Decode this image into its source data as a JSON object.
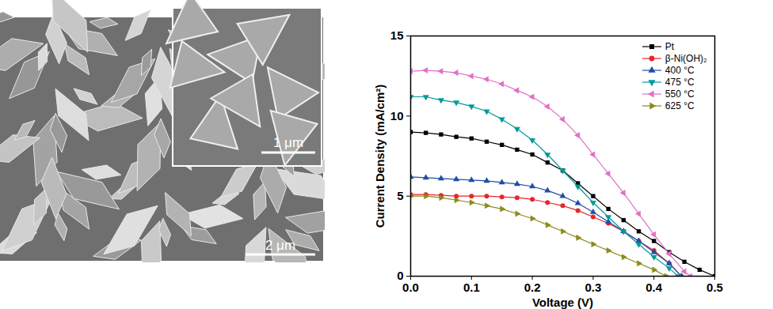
{
  "image": {
    "inset_scale_bar": "1 μm",
    "scale_bar": "2 μm"
  },
  "chart_data": {
    "type": "line",
    "x_label": "Voltage (V)",
    "y_label": "Current Density (mA/cm²)",
    "xlim": [
      0,
      0.5
    ],
    "ylim": [
      0,
      15
    ],
    "xticks": [
      {
        "value": 0,
        "label": "0.0"
      },
      {
        "value": 0.1,
        "label": "0.1"
      },
      {
        "value": 0.2,
        "label": "0.2"
      },
      {
        "value": 0.3,
        "label": "0.3"
      },
      {
        "value": 0.4,
        "label": "0.4"
      },
      {
        "value": 0.5,
        "label": "0.5"
      }
    ],
    "yticks": [
      0,
      5,
      10,
      15
    ],
    "grid": false,
    "legend": "upper right",
    "line_style": "solid",
    "series": [
      {
        "name": "Pt",
        "color": "#000000",
        "marker": "square",
        "x": [
          0,
          0.025,
          0.05,
          0.075,
          0.1,
          0.125,
          0.15,
          0.175,
          0.2,
          0.225,
          0.25,
          0.275,
          0.3,
          0.325,
          0.35,
          0.375,
          0.4,
          0.425,
          0.45,
          0.475,
          0.5
        ],
        "values": [
          9.0,
          8.95,
          8.85,
          8.7,
          8.6,
          8.4,
          8.2,
          7.9,
          7.6,
          7.1,
          6.6,
          5.8,
          5.0,
          4.2,
          3.5,
          2.8,
          2.2,
          1.5,
          0.9,
          0.4,
          0.0
        ]
      },
      {
        "name": "β-Ni(OH)₂",
        "color": "#e8262a",
        "marker": "circle",
        "x": [
          0,
          0.025,
          0.05,
          0.075,
          0.1,
          0.125,
          0.15,
          0.175,
          0.2,
          0.225,
          0.25,
          0.275,
          0.3,
          0.325,
          0.35,
          0.375,
          0.4,
          0.425,
          0.445
        ],
        "values": [
          5.1,
          5.1,
          5.05,
          5.0,
          5.0,
          5.0,
          4.95,
          4.9,
          4.8,
          4.6,
          4.4,
          4.1,
          3.7,
          3.3,
          2.8,
          2.2,
          1.6,
          0.8,
          0.0
        ]
      },
      {
        "name": "400 °C",
        "color": "#1f4fa8",
        "marker": "triangle-up",
        "x": [
          0,
          0.025,
          0.05,
          0.075,
          0.1,
          0.125,
          0.15,
          0.175,
          0.2,
          0.225,
          0.25,
          0.275,
          0.3,
          0.325,
          0.35,
          0.375,
          0.4,
          0.425,
          0.445
        ],
        "values": [
          6.2,
          6.15,
          6.1,
          6.05,
          6.0,
          5.95,
          5.85,
          5.75,
          5.6,
          5.35,
          5.0,
          4.55,
          4.0,
          3.4,
          2.8,
          2.2,
          1.5,
          0.8,
          0.0
        ]
      },
      {
        "name": "475 °C",
        "color": "#009a9a",
        "marker": "triangle-down",
        "x": [
          0,
          0.025,
          0.05,
          0.075,
          0.1,
          0.125,
          0.15,
          0.175,
          0.2,
          0.225,
          0.25,
          0.275,
          0.3,
          0.325,
          0.35,
          0.375,
          0.4,
          0.425,
          0.44
        ],
        "values": [
          11.2,
          11.2,
          11.0,
          10.85,
          10.6,
          10.3,
          9.8,
          9.2,
          8.5,
          7.6,
          6.6,
          5.6,
          4.6,
          3.7,
          2.8,
          2.0,
          1.2,
          0.5,
          0.0
        ]
      },
      {
        "name": "550 °C",
        "color": "#e070c8",
        "marker": "triangle-left",
        "x": [
          0,
          0.025,
          0.05,
          0.075,
          0.1,
          0.125,
          0.15,
          0.175,
          0.2,
          0.225,
          0.25,
          0.275,
          0.3,
          0.325,
          0.35,
          0.375,
          0.4,
          0.425,
          0.45,
          0.46
        ],
        "values": [
          12.8,
          12.85,
          12.8,
          12.7,
          12.5,
          12.3,
          12.0,
          11.6,
          11.2,
          10.6,
          9.8,
          8.8,
          7.6,
          6.4,
          5.2,
          3.9,
          2.6,
          1.4,
          0.3,
          0.0
        ]
      },
      {
        "name": "625 °C",
        "color": "#8b8b1a",
        "marker": "triangle-right",
        "x": [
          0,
          0.025,
          0.05,
          0.075,
          0.1,
          0.125,
          0.15,
          0.175,
          0.2,
          0.225,
          0.25,
          0.275,
          0.3,
          0.325,
          0.35,
          0.375,
          0.4,
          0.42
        ],
        "values": [
          5.0,
          5.0,
          4.9,
          4.75,
          4.6,
          4.4,
          4.2,
          3.9,
          3.6,
          3.2,
          2.8,
          2.4,
          2.0,
          1.6,
          1.2,
          0.8,
          0.4,
          0.0
        ]
      }
    ]
  }
}
